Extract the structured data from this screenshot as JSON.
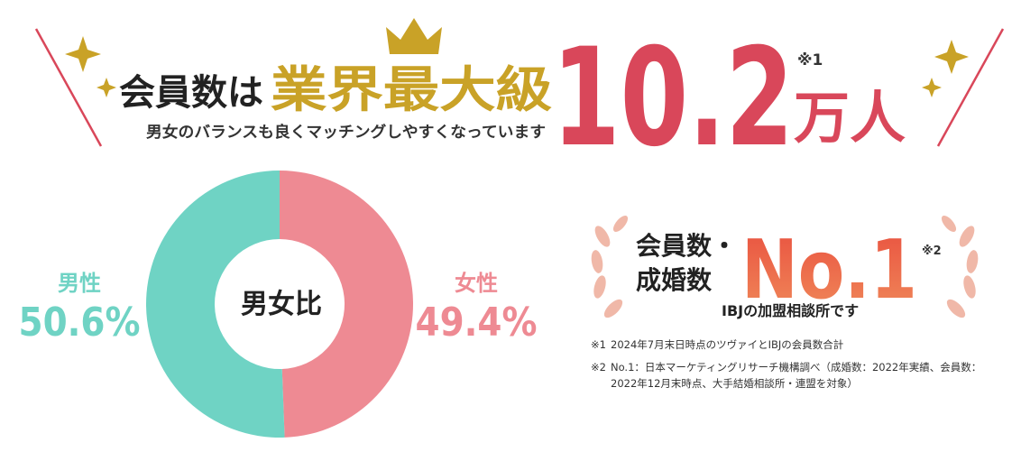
{
  "header": {
    "lead": "会員数は",
    "highlight": "業界最大級",
    "number": "10.2",
    "number_note": "※1",
    "unit": "万人",
    "subtitle": "男女のバランスも良くマッチングしやすくなっています"
  },
  "chart_data": {
    "type": "donut",
    "center_label": "男女比",
    "categories": [
      "男性",
      "女性"
    ],
    "values": [
      50.6,
      49.4
    ],
    "value_labels": [
      "50.6%",
      "49.4%"
    ],
    "colors": [
      "#6fd3c4",
      "#ee8a93"
    ]
  },
  "badge": {
    "line1": "会員数・",
    "line2": "成婚数",
    "rank": "No.1",
    "rank_note": "※2",
    "caption": "IBJの加盟相談所です"
  },
  "notes": [
    {
      "mark": "※1",
      "text": "2024年7月末日時点のツヴァイとIBJの会員数合計"
    },
    {
      "mark": "※2",
      "text": "No.1：日本マーケティングリサーチ機構調べ（成婚数：2022年実績、会員数：2022年12月末時点、大手結婚相談所・連盟を対象）"
    }
  ]
}
